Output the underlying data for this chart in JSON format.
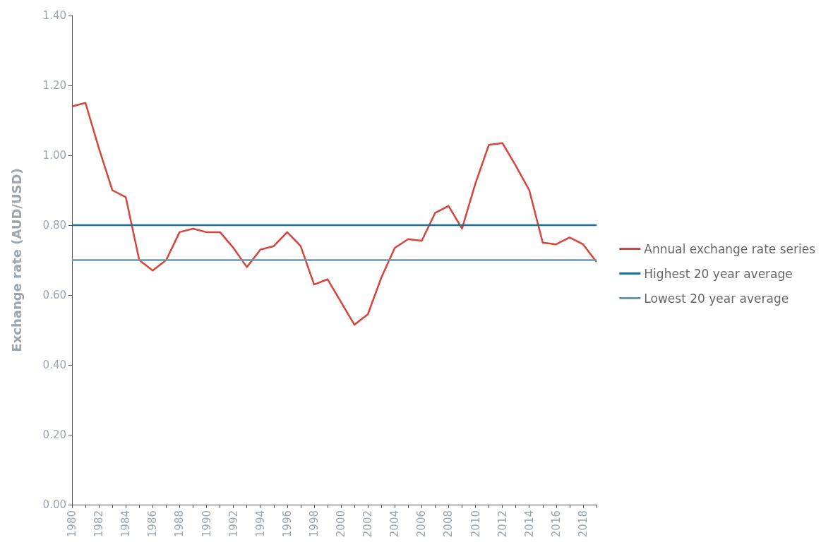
{
  "chart_data": {
    "type": "line",
    "ylabel": "Exchange rate (AUD/USD)",
    "categories": [
      "1980",
      null,
      "1982",
      null,
      "1984",
      null,
      "1986",
      null,
      "1988",
      null,
      "1990",
      null,
      "1992",
      null,
      "1994",
      null,
      "1996",
      null,
      "1998",
      null,
      "2000",
      null,
      "2002",
      null,
      "2004",
      null,
      "2006",
      null,
      "2008",
      null,
      "2010",
      null,
      "2012",
      null,
      "2014",
      null,
      "2016",
      null,
      "2018",
      null
    ],
    "series": [
      {
        "name": "Annual exchange rate series",
        "color": "#d9443a",
        "values": [
          1.14,
          1.15,
          1.02,
          0.9,
          0.88,
          0.7,
          0.67,
          0.7,
          0.78,
          0.79,
          0.78,
          0.78,
          0.735,
          0.68,
          0.73,
          0.74,
          0.78,
          0.74,
          0.63,
          0.645,
          0.58,
          0.515,
          0.545,
          0.65,
          0.735,
          0.76,
          0.755,
          0.835,
          0.855,
          0.79,
          0.92,
          1.03,
          1.035,
          0.97,
          0.9,
          0.75,
          0.745,
          0.765,
          0.745,
          0.695
        ]
      },
      {
        "name": "Highest 20 year average",
        "color": "#1f6e8c",
        "values": [
          0.8,
          0.8,
          0.8,
          0.8,
          0.8,
          0.8,
          0.8,
          0.8,
          0.8,
          0.8,
          0.8,
          0.8,
          0.8,
          0.8,
          0.8,
          0.8,
          0.8,
          0.8,
          0.8,
          0.8,
          0.8,
          0.8,
          0.8,
          0.8,
          0.8,
          0.8,
          0.8,
          0.8,
          0.8,
          0.8,
          0.8,
          0.8,
          0.8,
          0.8,
          0.8,
          0.8,
          0.8,
          0.8,
          0.8,
          0.8
        ]
      },
      {
        "name": "Lowest 20 year average",
        "color": "#5b9db5",
        "values": [
          0.7,
          0.7,
          0.7,
          0.7,
          0.7,
          0.7,
          0.7,
          0.7,
          0.7,
          0.7,
          0.7,
          0.7,
          0.7,
          0.7,
          0.7,
          0.7,
          0.7,
          0.7,
          0.7,
          0.7,
          0.7,
          0.7,
          0.7,
          0.7,
          0.7,
          0.7,
          0.7,
          0.7,
          0.7,
          0.7,
          0.7,
          0.7,
          0.7,
          0.7,
          0.7,
          0.7,
          0.7,
          0.7,
          0.7,
          0.7
        ]
      }
    ],
    "ylim": [
      0,
      1.4
    ],
    "yticks": [
      {
        "value": 0,
        "label": "0.00"
      },
      {
        "value": 0.2,
        "label": "0.20"
      },
      {
        "value": 0.4,
        "label": "0.40"
      },
      {
        "value": 0.6,
        "label": "0.60"
      },
      {
        "value": 0.8,
        "label": "0.80"
      },
      {
        "value": 1,
        "label": "1.00"
      },
      {
        "value": 1.2,
        "label": "1.20"
      },
      {
        "value": 1.4,
        "label": "1.40"
      }
    ],
    "grid": false,
    "legend": "right",
    "marker": "none",
    "line_style": "solid"
  }
}
